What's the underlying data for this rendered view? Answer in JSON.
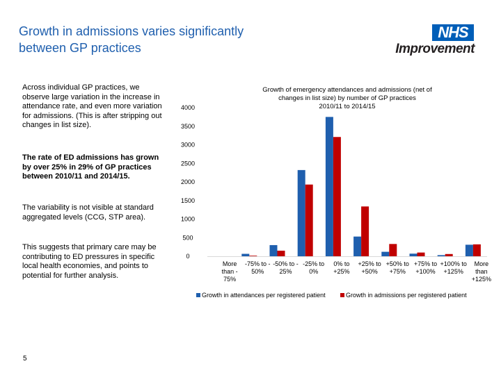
{
  "slide": {
    "title_line1": "Growth in admissions varies significantly",
    "title_line2": "between GP practices",
    "logo_nhs": "NHS",
    "logo_improvement": "Improvement",
    "paragraphs": [
      "Across individual GP practices, we observe large variation in the increase in attendance rate, and even more variation for admissions. (This is after stripping out changes in list size).",
      "The rate of ED admissions has grown by over 25% in 29% of GP practices between 2010/11 and 2014/15.",
      "The variability is not visible at standard aggregated levels (CCG, STP area).",
      "This suggests that primary care may be contributing to ED pressures in specific local health economies, and points to potential for further analysis."
    ],
    "page_number": "5"
  },
  "chart_data": {
    "type": "bar",
    "title_lines": [
      "Growth of emergency attendances and admissions (net of",
      "changes in list size) by number of GP practices",
      "2010/11 to 2014/15"
    ],
    "categories": [
      [
        "More",
        "than -",
        "75%"
      ],
      [
        "-75% to -",
        "50%"
      ],
      [
        "-50% to -",
        "25%"
      ],
      [
        "-25% to",
        "0%"
      ],
      [
        "0% to",
        "+25%"
      ],
      [
        "+25% to",
        "+50%"
      ],
      [
        "+50% to",
        "+75%"
      ],
      [
        "+75% to",
        "+100%"
      ],
      [
        "+100% to",
        "+125%"
      ],
      [
        "More",
        "than",
        "+125%"
      ]
    ],
    "series": [
      {
        "name": "Growth in attendances per registered patient",
        "color": "#1f5fae",
        "values": [
          0,
          65,
          300,
          2320,
          3750,
          530,
          120,
          70,
          30,
          310
        ]
      },
      {
        "name": "Growth in admissions per registered patient",
        "color": "#c00000",
        "values": [
          0,
          15,
          150,
          1930,
          3210,
          1340,
          330,
          100,
          60,
          320
        ]
      }
    ],
    "ylim": [
      0,
      4000
    ],
    "yticks": [
      0,
      500,
      1000,
      1500,
      2000,
      2500,
      3000,
      3500,
      4000
    ],
    "grid": false,
    "legend_position": "bottom"
  }
}
